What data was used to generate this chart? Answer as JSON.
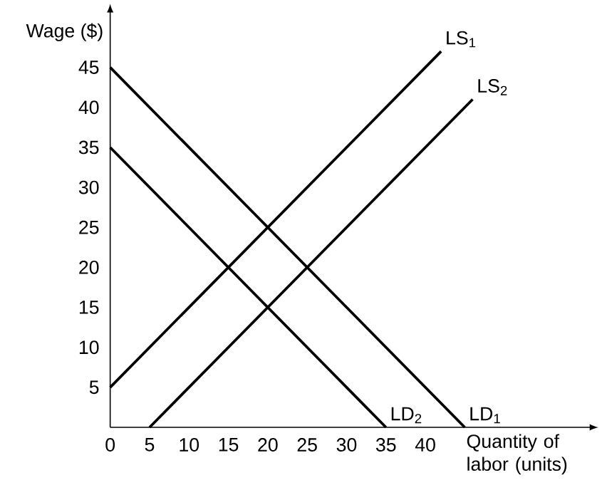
{
  "chart_data": {
    "type": "line",
    "xlabel": "Quantity of labor (units)",
    "ylabel": "Wage ($)",
    "xlim": [
      0,
      61
    ],
    "ylim": [
      0,
      52
    ],
    "xticks": [
      0,
      5,
      10,
      15,
      20,
      25,
      30,
      35,
      40
    ],
    "yticks": [
      5,
      10,
      15,
      20,
      25,
      30,
      35,
      40,
      45
    ],
    "series": [
      {
        "name": "LS$_{1}$",
        "color": "#000000",
        "x": [
          0,
          42
        ],
        "values": [
          5,
          47
        ]
      },
      {
        "name": "LS$_{2}$",
        "color": "#000000",
        "x": [
          5,
          46
        ],
        "values": [
          0,
          41
        ]
      },
      {
        "name": "LD$_{1}$",
        "color": "#000000",
        "x": [
          0,
          45
        ],
        "values": [
          45,
          0
        ]
      },
      {
        "name": "LD$_{2}$",
        "color": "#000000",
        "x": [
          0,
          35
        ],
        "values": [
          35,
          0
        ]
      }
    ]
  }
}
